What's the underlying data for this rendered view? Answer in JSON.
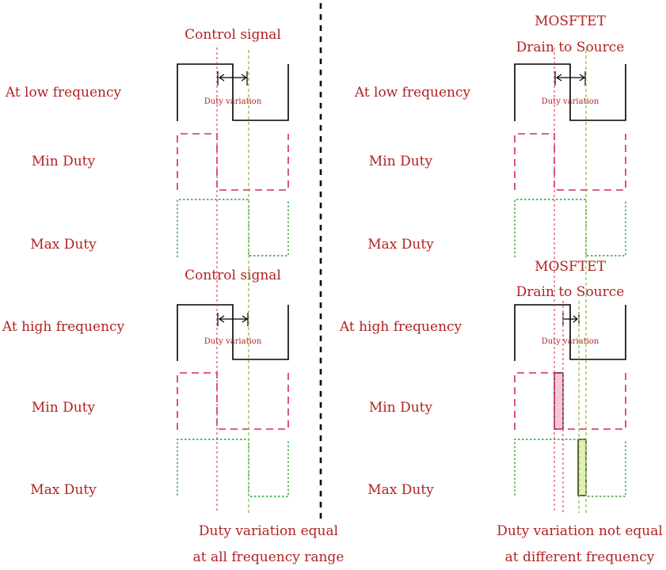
{
  "labels": {
    "low_frequency": "At low frequency",
    "high_frequency": "At high frequency",
    "min_duty": "Min Duty",
    "max_duty": "Max Duty",
    "control_signal": "Control signal",
    "mosftet": "MOSFTET",
    "drain_to_source": "Drain to Source",
    "duty_variation": "Duty variation"
  },
  "captions": {
    "left_line1": "Duty variation equal",
    "left_line2": "at all frequency range",
    "right_line1": "Duty variation not equal",
    "right_line2": "at different frequency"
  },
  "colors": {
    "label": "#b22222",
    "signal": "#000000",
    "min_duty": "#d62b4e",
    "max_duty": "#2e9e3a",
    "shade_pink": "#f7c6dc",
    "shade_green": "#dff0b0"
  }
}
